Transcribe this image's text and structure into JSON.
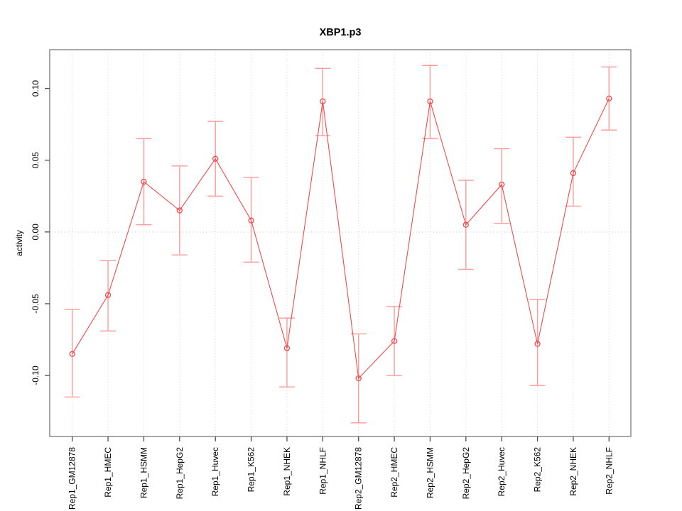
{
  "title": "XBP1.p3",
  "chart_data": {
    "type": "line",
    "title": "XBP1.p3",
    "xlabel": "",
    "ylabel": "activity",
    "legend": "none",
    "grid": {
      "vertical_dotted_per_category": true,
      "horizontal_dotted_at_zero": true
    },
    "ylim": [
      -0.1425,
      0.127
    ],
    "yticks": [
      -0.1,
      -0.05,
      0.0,
      0.05,
      0.1
    ],
    "ytick_labels": [
      "-0.10",
      "-0.05",
      "0.00",
      "0.05",
      "0.10"
    ],
    "categories": [
      "Rep1_GM12878",
      "Rep1_HMEC",
      "Rep1_HSMM",
      "Rep1_HepG2",
      "Rep1_Huvec",
      "Rep1_K562",
      "Rep1_NHEK",
      "Rep1_NHLF",
      "Rep2_GM12878",
      "Rep2_HMEC",
      "Rep2_HSMM",
      "Rep2_HepG2",
      "Rep2_Huvec",
      "Rep2_K562",
      "Rep2_NHEK",
      "Rep2_NHLF"
    ],
    "series": [
      {
        "name": "activity",
        "marker": "open-circle",
        "values": [
          -0.085,
          -0.044,
          0.035,
          0.015,
          0.051,
          0.008,
          -0.081,
          0.091,
          -0.102,
          -0.076,
          0.091,
          0.005,
          0.033,
          -0.078,
          0.041,
          0.093
        ],
        "error_low": [
          -0.115,
          -0.069,
          0.005,
          -0.016,
          0.025,
          -0.021,
          -0.108,
          0.067,
          -0.133,
          -0.1,
          0.065,
          -0.026,
          0.006,
          -0.107,
          0.018,
          0.071
        ],
        "error_high": [
          -0.054,
          -0.02,
          0.065,
          0.046,
          0.077,
          0.038,
          -0.06,
          0.114,
          -0.071,
          -0.052,
          0.116,
          0.036,
          0.058,
          -0.047,
          0.066,
          0.115
        ]
      }
    ],
    "colors": {
      "series": "#f24a4a",
      "error_bar": "#ff9a9a",
      "grid": "#d9d9d9",
      "zero_line": "#cfcfcf",
      "box": "#7a7a7a",
      "tick": "#4d4d4d",
      "text": "#000000",
      "background": "#ffffff"
    }
  }
}
